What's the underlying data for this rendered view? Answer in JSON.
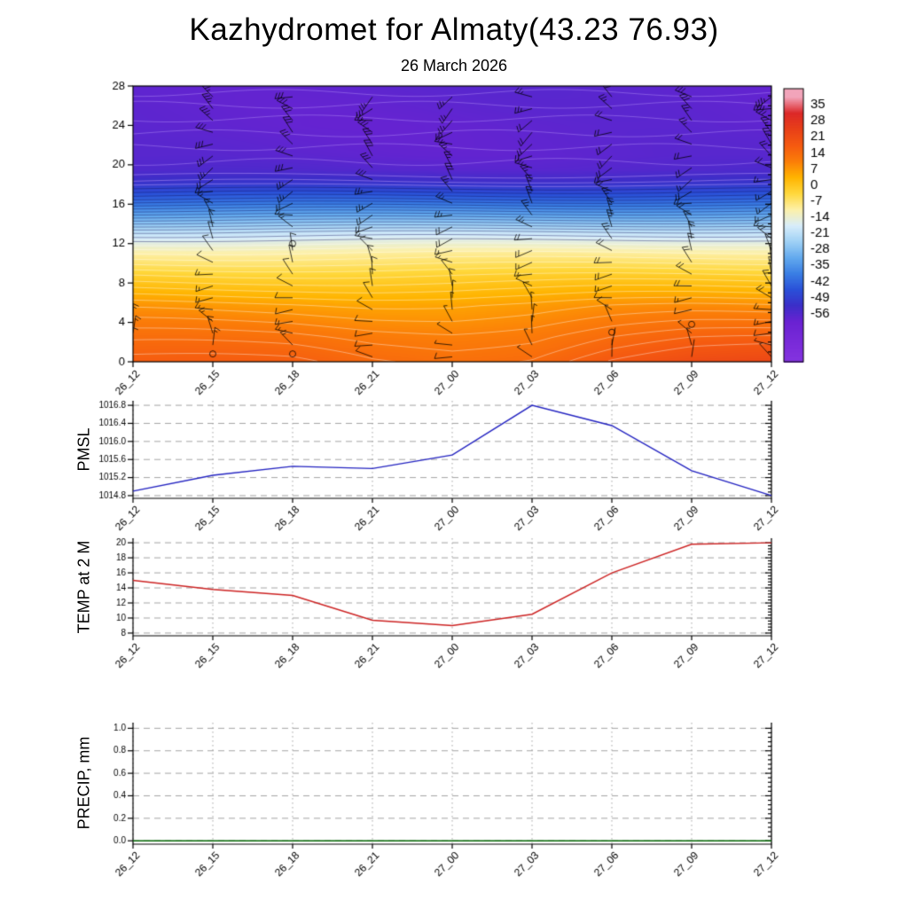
{
  "title": "Kazhydromet for Almaty(43.23 76.93)",
  "subtitle": "26 March 2026",
  "time_labels": [
    "26_12",
    "26_15",
    "26_18",
    "26_21",
    "27_00",
    "27_03",
    "27_06",
    "27_09",
    "27_12"
  ],
  "chart_data": [
    {
      "type": "heatmap",
      "name": "temperature-wind-height-time-section",
      "x_categories": [
        "26_12",
        "26_15",
        "26_18",
        "26_21",
        "27_00",
        "27_03",
        "27_06",
        "27_09",
        "27_12"
      ],
      "y_ticks": [
        0,
        4,
        8,
        12,
        16,
        20,
        24,
        28
      ],
      "y_range": [
        0,
        28
      ],
      "grid": false,
      "contour_interval": 2,
      "profile": [
        [
          0,
          17
        ],
        [
          2.5,
          13
        ],
        [
          5.7,
          7
        ],
        [
          8.8,
          -2
        ],
        [
          11.1,
          -10
        ],
        [
          13.2,
          -20
        ],
        [
          14.7,
          -30
        ],
        [
          16.5,
          -42
        ],
        [
          18.3,
          -52
        ],
        [
          19.5,
          -56
        ],
        [
          21,
          -57.5
        ],
        [
          24,
          -58
        ],
        [
          28,
          -57.5
        ]
      ],
      "surface_anomaly": [
        0,
        -0.5,
        -1,
        -3,
        -3.5,
        -2,
        2,
        4.5,
        5
      ],
      "colorbar": {
        "labels": [
          35,
          28,
          21,
          14,
          7,
          0,
          -7,
          -14,
          -21,
          -28,
          -35,
          -42,
          -49,
          -56
        ],
        "value_top": 42,
        "value_bottom": -77,
        "stops": [
          [
            38.5,
            "#f2a4ba"
          ],
          [
            31.5,
            "#dc2828"
          ],
          [
            24.5,
            "#e84018"
          ],
          [
            17.5,
            "#f55a10"
          ],
          [
            10.5,
            "#fb7d08"
          ],
          [
            3.5,
            "#ffb400"
          ],
          [
            -3.5,
            "#ffd83c"
          ],
          [
            -10.5,
            "#fdf0a8"
          ],
          [
            -17.5,
            "#d8edfa"
          ],
          [
            -24.5,
            "#9fd1f5"
          ],
          [
            -31.5,
            "#63aaee"
          ],
          [
            -38.5,
            "#3a7ee4"
          ],
          [
            -45.5,
            "#2a50d8"
          ],
          [
            -52.5,
            "#3c2ec8"
          ],
          [
            -59.5,
            "#6a22d2"
          ],
          [
            -70,
            "#7c2cda"
          ],
          [
            -77,
            "#8434e0"
          ]
        ]
      },
      "wind": {
        "start_h": 0.5,
        "step_h": 1.2,
        "shaft_len": 20,
        "dir_base": 320,
        "dir_amp": 55,
        "dir_f_col": 1.15,
        "dir_f_h": 0.5,
        "dir_h_slope": -2.0,
        "spd_base": 8,
        "spd_h_slope": 0.85,
        "spd_amp": 6,
        "spd_f_col": 0.7,
        "spd_f_h": 0.3,
        "calm_points": [
          [
            1,
            0.8
          ],
          [
            2,
            0.8
          ],
          [
            2,
            12
          ],
          [
            6,
            3
          ],
          [
            7,
            3.8
          ]
        ]
      }
    },
    {
      "type": "line",
      "ylabel": "PMSL",
      "color": "#2222c0",
      "y_ticks": [
        1016.8,
        1016.4,
        1016.0,
        1015.6,
        1015.2,
        1014.8
      ],
      "y_tick_labels": [
        "1016.8",
        "1016.4",
        "1016.0",
        "1015.6",
        "1015.2",
        "1014.8"
      ],
      "y_range": [
        1014.8,
        1016.8
      ],
      "values": [
        1014.9,
        1015.25,
        1015.45,
        1015.4,
        1015.7,
        1016.8,
        1016.35,
        1015.35,
        1014.8
      ]
    },
    {
      "type": "line",
      "ylabel": "TEMP at 2 M",
      "color": "#cc2222",
      "y_ticks": [
        20,
        18,
        16,
        14,
        12,
        10,
        8
      ],
      "y_tick_labels": [
        "20",
        "18",
        "16",
        "14",
        "12",
        "10",
        "8"
      ],
      "y_range": [
        8,
        20
      ],
      "values": [
        15,
        13.8,
        13,
        9.7,
        9,
        10.5,
        16,
        19.8,
        20
      ]
    },
    {
      "type": "line",
      "ylabel": "PRECIP, mm",
      "color": "#006400",
      "y_ticks": [
        1.0,
        0.8,
        0.6,
        0.4,
        0.2,
        0.0
      ],
      "y_tick_labels": [
        "1.0",
        "0.8",
        "0.6",
        "0.4",
        "0.2",
        "0.0"
      ],
      "y_range": [
        0,
        1
      ],
      "values": [
        0,
        0,
        0,
        0,
        0,
        0,
        0,
        0,
        0
      ]
    }
  ]
}
